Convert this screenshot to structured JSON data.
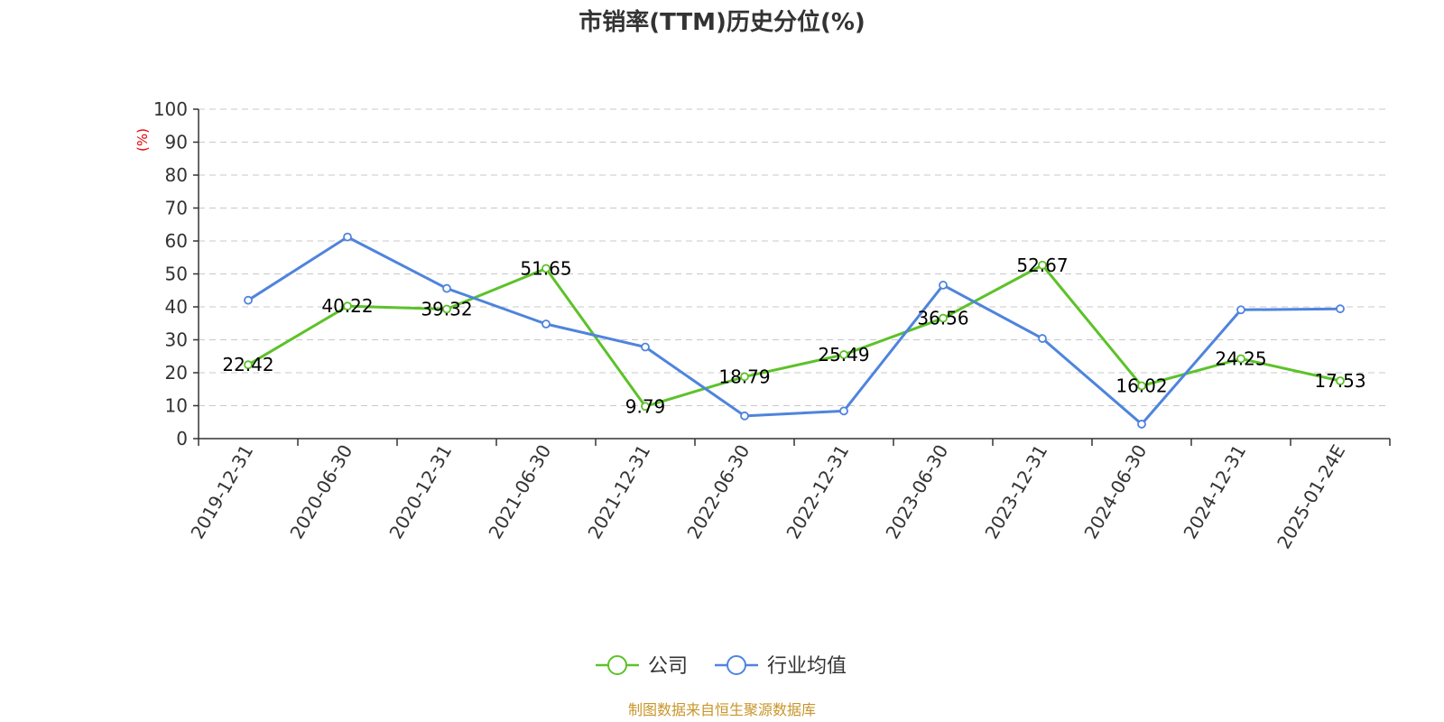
{
  "chart_data": {
    "type": "line",
    "title": "市销率(TTM)历史分位(%)",
    "ylabel": "(%)",
    "xlabel": "",
    "ylim": [
      0,
      100
    ],
    "yticks": [
      0,
      10,
      20,
      30,
      40,
      50,
      60,
      70,
      80,
      90,
      100
    ],
    "grid": true,
    "categories": [
      "2019-12-31",
      "2020-06-30",
      "2020-12-31",
      "2021-06-30",
      "2021-12-31",
      "2022-06-30",
      "2022-12-31",
      "2023-06-30",
      "2023-12-31",
      "2024-06-30",
      "2024-12-31",
      "2025-01-24E"
    ],
    "series": [
      {
        "name": "公司",
        "color": "#5cc229",
        "values": [
          22.42,
          40.22,
          39.32,
          51.65,
          9.79,
          18.79,
          25.49,
          36.56,
          52.67,
          16.02,
          24.25,
          17.53
        ],
        "labels": [
          "22.42",
          "40.22",
          "39.32",
          "51.65",
          "9.79",
          "18.79",
          "25.49",
          "36.56",
          "52.67",
          "16.02",
          "24.25",
          "17.53"
        ]
      },
      {
        "name": "行业均值",
        "color": "#4f84dd",
        "values": [
          42.0,
          61.2,
          45.6,
          34.8,
          27.8,
          6.9,
          8.4,
          46.6,
          30.4,
          4.4,
          39.1,
          39.4
        ]
      }
    ],
    "legend_position": "bottom-center",
    "source": "制图数据来自恒生聚源数据库"
  }
}
